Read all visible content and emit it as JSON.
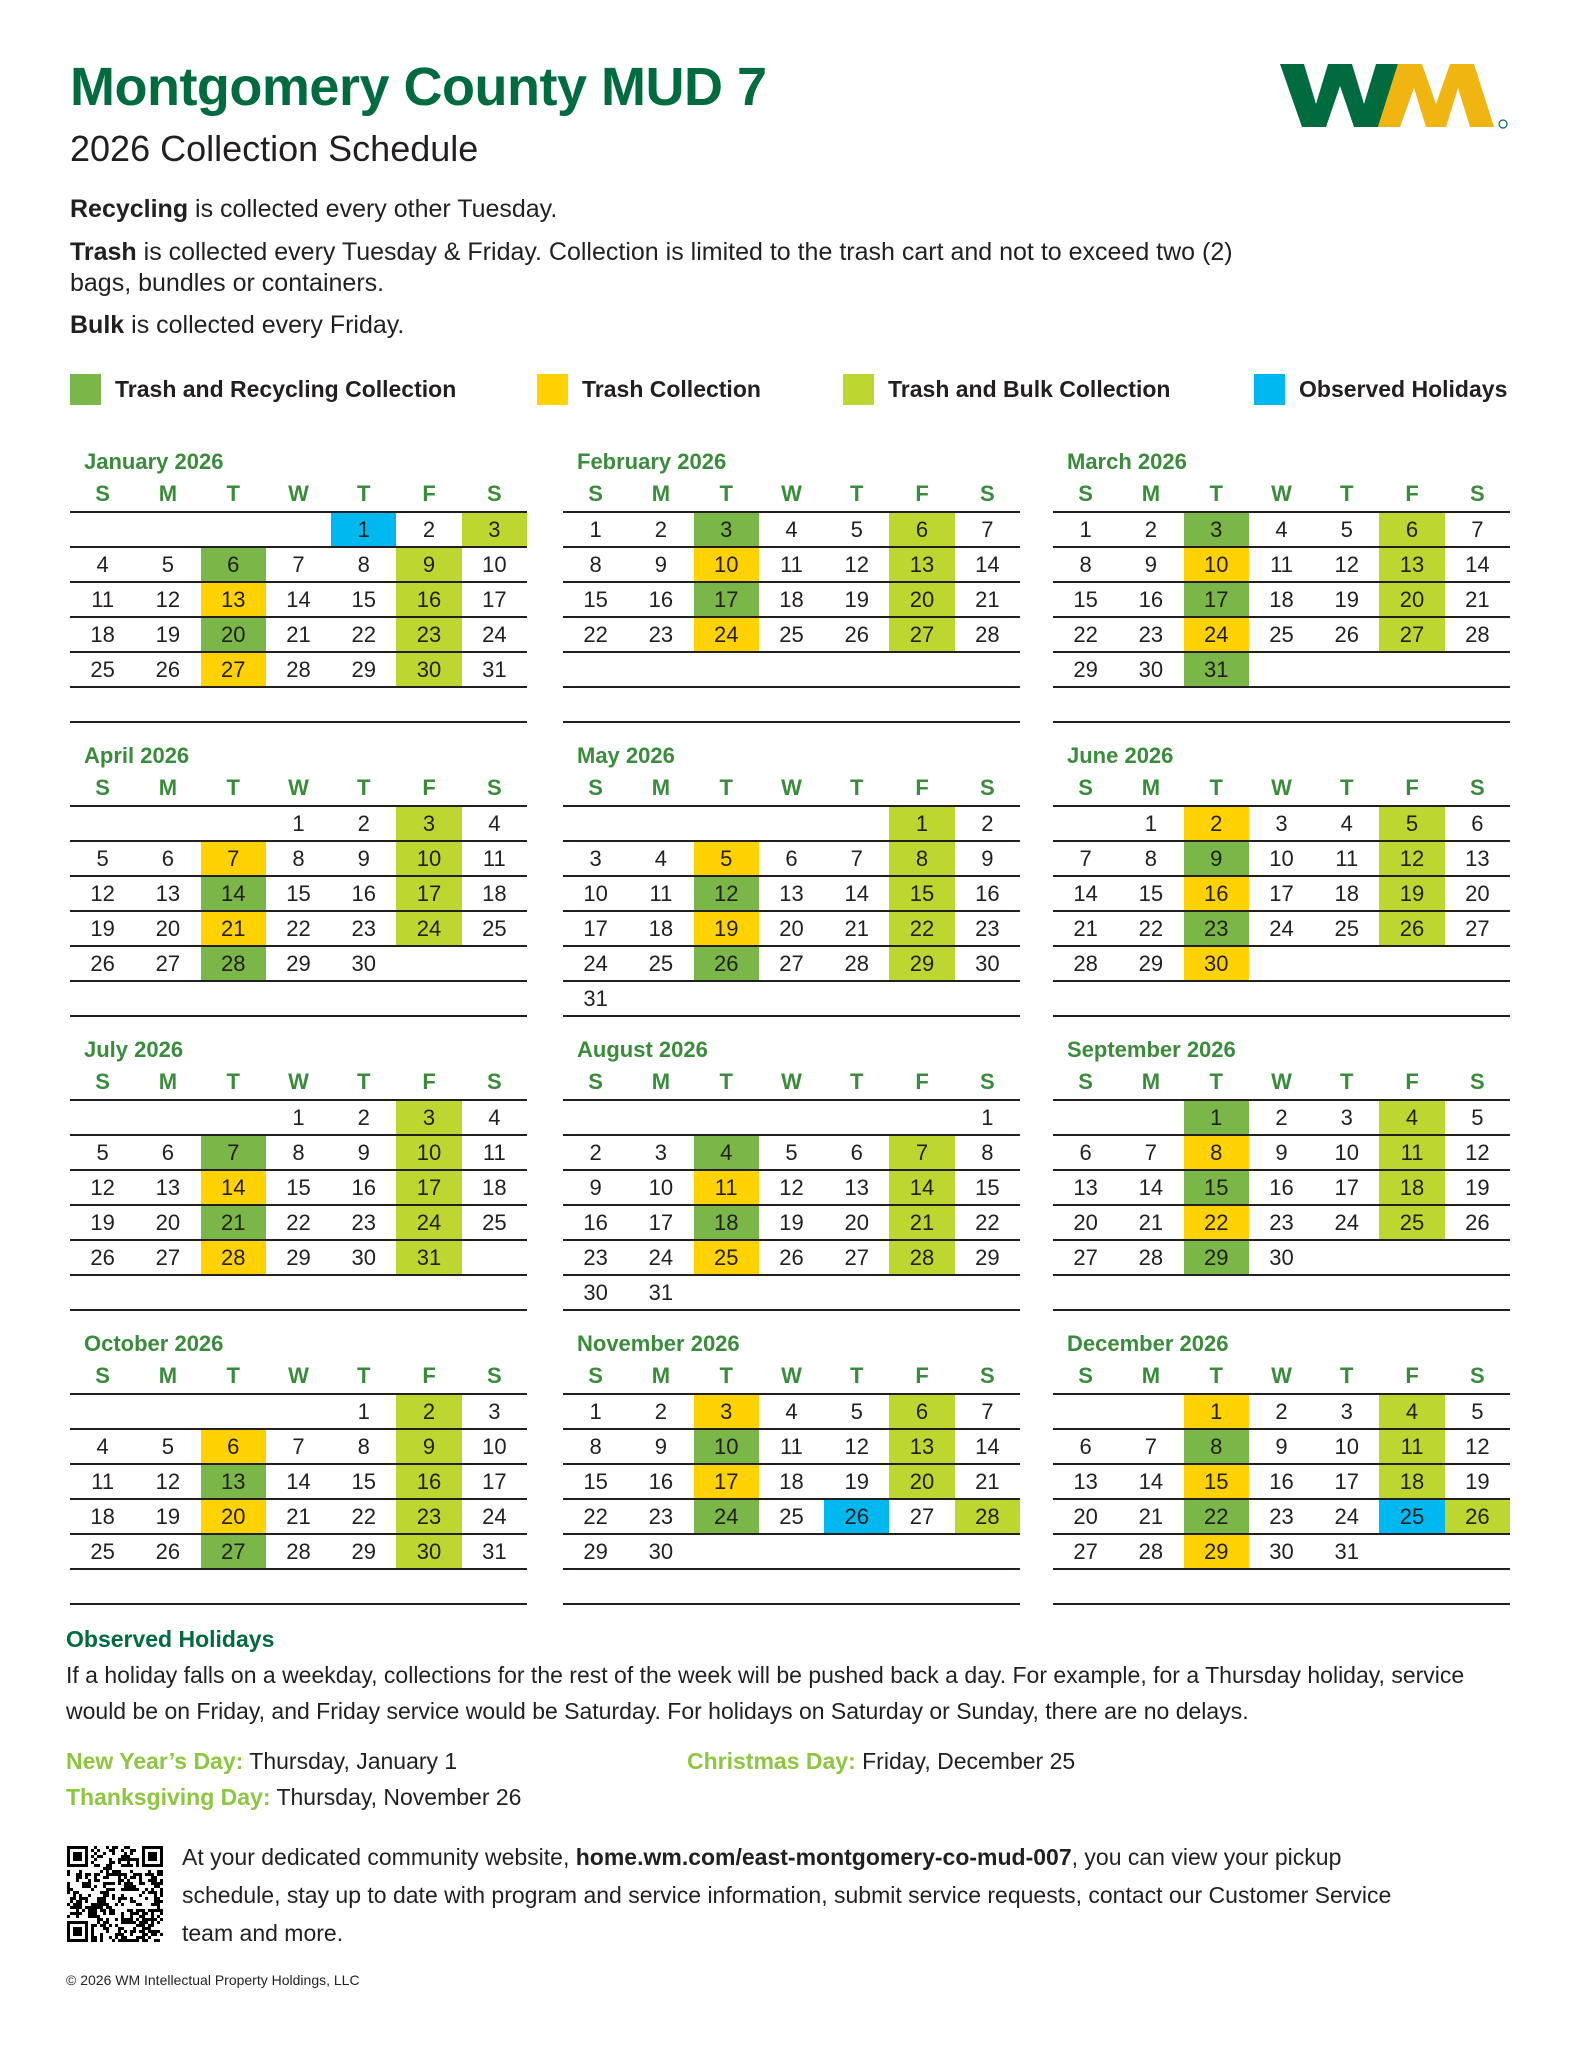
{
  "header": {
    "title": "Montgomery County MUD 7",
    "subtitle": "2026 Collection Schedule",
    "logo_text": "WM"
  },
  "intro": {
    "recycling_bold": "Recycling",
    "recycling_text": " is collected every other Tuesday.",
    "trash_bold": "Trash",
    "trash_text": " is collected every Tuesday & Friday. Collection is limited to the trash cart and not to exceed two (2) bags, bundles or containers.",
    "bulk_bold": "Bulk",
    "bulk_text": " is collected every Friday."
  },
  "legend": [
    {
      "label": "Trash and Recycling Collection",
      "color": "#7ab648"
    },
    {
      "label": "Trash Collection",
      "color": "#ffd200"
    },
    {
      "label": "Trash and Bulk Collection",
      "color": "#bed630"
    },
    {
      "label": "Observed Holidays",
      "color": "#00b8f0"
    }
  ],
  "weekdays": [
    "S",
    "M",
    "T",
    "W",
    "T",
    "F",
    "S"
  ],
  "months": [
    {
      "name": "January 2026",
      "start": 4,
      "days": 31,
      "marks": {
        "1": "H",
        "3": "L",
        "6": "G",
        "9": "L",
        "13": "Y",
        "16": "L",
        "20": "G",
        "23": "L",
        "27": "Y",
        "30": "L"
      }
    },
    {
      "name": "February 2026",
      "start": 0,
      "days": 28,
      "marks": {
        "3": "G",
        "6": "L",
        "10": "Y",
        "13": "L",
        "17": "G",
        "20": "L",
        "24": "Y",
        "27": "L"
      }
    },
    {
      "name": "March 2026",
      "start": 0,
      "days": 31,
      "marks": {
        "3": "G",
        "6": "L",
        "10": "Y",
        "13": "L",
        "17": "G",
        "20": "L",
        "24": "Y",
        "27": "L",
        "31": "G"
      }
    },
    {
      "name": "April 2026",
      "start": 3,
      "days": 30,
      "marks": {
        "3": "L",
        "7": "Y",
        "10": "L",
        "14": "G",
        "17": "L",
        "21": "Y",
        "24": "L",
        "28": "G"
      }
    },
    {
      "name": "May 2026",
      "start": 5,
      "days": 31,
      "marks": {
        "1": "L",
        "5": "Y",
        "8": "L",
        "12": "G",
        "15": "L",
        "19": "Y",
        "22": "L",
        "26": "G",
        "29": "L"
      }
    },
    {
      "name": "June 2026",
      "start": 1,
      "days": 30,
      "marks": {
        "2": "Y",
        "5": "L",
        "9": "G",
        "12": "L",
        "16": "Y",
        "19": "L",
        "23": "G",
        "26": "L",
        "30": "Y"
      }
    },
    {
      "name": "July 2026",
      "start": 3,
      "days": 31,
      "marks": {
        "3": "L",
        "7": "G",
        "10": "L",
        "14": "Y",
        "17": "L",
        "21": "G",
        "24": "L",
        "28": "Y",
        "31": "L"
      }
    },
    {
      "name": "August 2026",
      "start": 6,
      "days": 31,
      "marks": {
        "4": "G",
        "7": "L",
        "11": "Y",
        "14": "L",
        "18": "G",
        "21": "L",
        "25": "Y",
        "28": "L"
      }
    },
    {
      "name": "September 2026",
      "start": 2,
      "days": 30,
      "marks": {
        "1": "G",
        "4": "L",
        "8": "Y",
        "11": "L",
        "15": "G",
        "18": "L",
        "22": "Y",
        "25": "L",
        "29": "G"
      }
    },
    {
      "name": "October 2026",
      "start": 4,
      "days": 31,
      "marks": {
        "2": "L",
        "6": "Y",
        "9": "L",
        "13": "G",
        "16": "L",
        "20": "Y",
        "23": "L",
        "27": "G",
        "30": "L"
      }
    },
    {
      "name": "November 2026",
      "start": 0,
      "days": 30,
      "marks": {
        "3": "Y",
        "6": "L",
        "10": "G",
        "13": "L",
        "17": "Y",
        "20": "L",
        "24": "G",
        "26": "H",
        "28": "L"
      }
    },
    {
      "name": "December 2026",
      "start": 2,
      "days": 31,
      "marks": {
        "1": "Y",
        "4": "L",
        "8": "G",
        "11": "L",
        "15": "Y",
        "18": "L",
        "22": "G",
        "25": "H",
        "26": "L",
        "29": "Y"
      }
    }
  ],
  "holidays": {
    "heading": "Observed Holidays",
    "text": "If a holiday falls on a weekday, collections for the rest of the week will be pushed back a day. For example, for a Thursday holiday, service would be on Friday, and Friday service would be Saturday. For holidays on Saturday or Sunday, there are no delays.",
    "list": [
      {
        "name": "New Year’s Day:",
        "date": " Thursday, January 1"
      },
      {
        "name": "Christmas Day:",
        "date": " Friday, December 25"
      },
      {
        "name": "Thanksgiving Day:",
        "date": " Thursday, November 26"
      }
    ]
  },
  "website": {
    "pre": "At your dedicated community website, ",
    "url": "home.wm.com/east-montgomery-co-mud-007",
    "post": ", you can view your pickup schedule, stay up to date with program and service information, submit service requests, contact our Customer Service team and more."
  },
  "footer": {
    "copyright": "© 2026 WM Intellectual Property Holdings, LLC"
  }
}
